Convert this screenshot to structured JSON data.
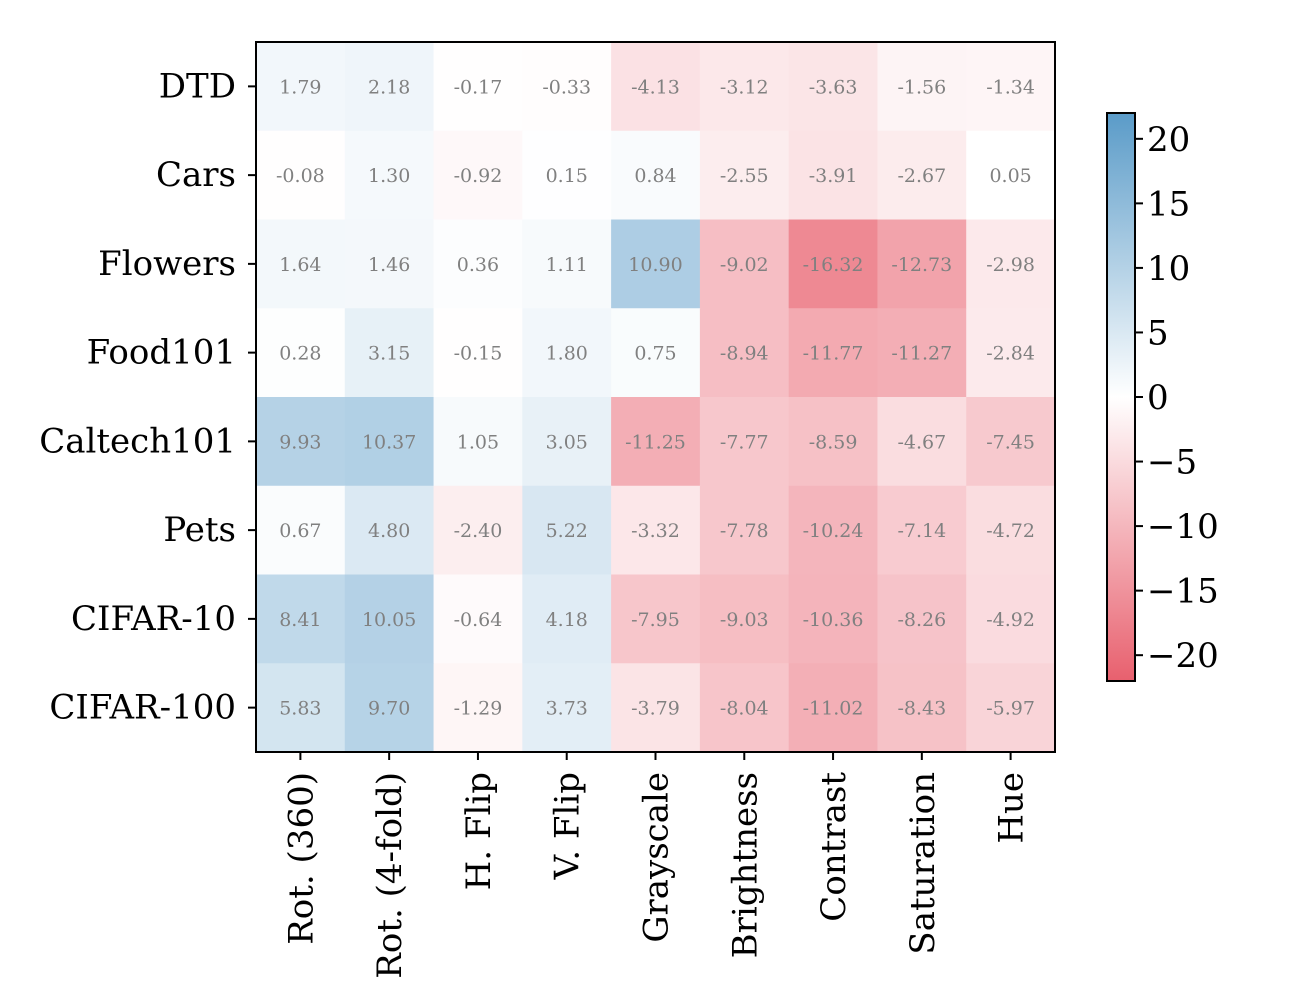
{
  "chart_data": {
    "type": "heatmap",
    "rows": [
      "DTD",
      "Cars",
      "Flowers",
      "Food101",
      "Caltech101",
      "Pets",
      "CIFAR-10",
      "CIFAR-100"
    ],
    "columns": [
      "Rot. (360)",
      "Rot. (4-fold)",
      "H. Flip",
      "V. Flip",
      "Grayscale",
      "Brightness",
      "Contrast",
      "Saturation",
      "Hue"
    ],
    "values": [
      [
        1.79,
        2.18,
        -0.17,
        -0.33,
        -4.13,
        -3.12,
        -3.63,
        -1.56,
        -1.34
      ],
      [
        -0.08,
        1.3,
        -0.92,
        0.15,
        0.84,
        -2.55,
        -3.91,
        -2.67,
        0.05
      ],
      [
        1.64,
        1.46,
        0.36,
        1.11,
        10.9,
        -9.02,
        -16.32,
        -12.73,
        -2.98
      ],
      [
        0.28,
        3.15,
        -0.15,
        1.8,
        0.75,
        -8.94,
        -11.77,
        -11.27,
        -2.84
      ],
      [
        9.93,
        10.37,
        1.05,
        3.05,
        -11.25,
        -7.77,
        -8.59,
        -4.67,
        -7.45
      ],
      [
        0.67,
        4.8,
        -2.4,
        5.22,
        -3.32,
        -7.78,
        -10.24,
        -7.14,
        -4.72
      ],
      [
        8.41,
        10.05,
        -0.64,
        4.18,
        -7.95,
        -9.03,
        -10.36,
        -8.26,
        -4.92
      ],
      [
        5.83,
        9.7,
        -1.29,
        3.73,
        -3.79,
        -8.04,
        -11.02,
        -8.43,
        -5.97
      ]
    ],
    "value_labels": [
      [
        "1.79",
        "2.18",
        "-0.17",
        "-0.33",
        "-4.13",
        "-3.12",
        "-3.63",
        "-1.56",
        "-1.34"
      ],
      [
        "-0.08",
        "1.30",
        "-0.92",
        "0.15",
        "0.84",
        "-2.55",
        "-3.91",
        "-2.67",
        "0.05"
      ],
      [
        "1.64",
        "1.46",
        "0.36",
        "1.11",
        "10.90",
        "-9.02",
        "-16.32",
        "-12.73",
        "-2.98"
      ],
      [
        "0.28",
        "3.15",
        "-0.15",
        "1.80",
        "0.75",
        "-8.94",
        "-11.77",
        "-11.27",
        "-2.84"
      ],
      [
        "9.93",
        "10.37",
        "1.05",
        "3.05",
        "-11.25",
        "-7.77",
        "-8.59",
        "-4.67",
        "-7.45"
      ],
      [
        "0.67",
        "4.80",
        "-2.40",
        "5.22",
        "-3.32",
        "-7.78",
        "-10.24",
        "-7.14",
        "-4.72"
      ],
      [
        "8.41",
        "10.05",
        "-0.64",
        "4.18",
        "-7.95",
        "-9.03",
        "-10.36",
        "-8.26",
        "-4.92"
      ],
      [
        "5.83",
        "9.70",
        "-1.29",
        "3.73",
        "-3.79",
        "-8.04",
        "-11.02",
        "-8.43",
        "-5.97"
      ]
    ],
    "colorbar": {
      "range": [
        -22,
        22
      ],
      "ticks": [
        20,
        15,
        10,
        5,
        0,
        -5,
        -10,
        -15,
        -20
      ],
      "tick_labels": [
        "20",
        "15",
        "10",
        "5",
        "0",
        "−5",
        "−10",
        "−15",
        "−20"
      ],
      "colors": {
        "negative": "#e8606e",
        "zero": "#ffffff",
        "positive": "#5a9bc8"
      }
    }
  }
}
